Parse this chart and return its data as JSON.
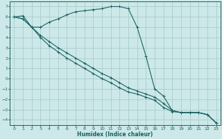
{
  "xlabel": "Humidex (Indice chaleur)",
  "background_color": "#cce8e8",
  "grid_color": "#aacccc",
  "line_color": "#1a6060",
  "xlim": [
    -0.5,
    23.5
  ],
  "ylim": [
    -4.5,
    7.5
  ],
  "xticks": [
    0,
    1,
    2,
    3,
    4,
    5,
    6,
    7,
    8,
    9,
    10,
    11,
    12,
    13,
    14,
    15,
    16,
    17,
    18,
    19,
    20,
    21,
    22,
    23
  ],
  "yticks": [
    -4,
    -3,
    -2,
    -1,
    0,
    1,
    2,
    3,
    4,
    5,
    6,
    7
  ],
  "line1_x": [
    0,
    1,
    2,
    3,
    4,
    5,
    6,
    7,
    8,
    9,
    10,
    11,
    12,
    13,
    14,
    15,
    16,
    17,
    18,
    19,
    20,
    21,
    22,
    23
  ],
  "line1_y": [
    6.0,
    6.1,
    5.0,
    5.0,
    5.5,
    5.8,
    6.2,
    6.5,
    6.6,
    6.7,
    6.8,
    7.0,
    7.0,
    6.8,
    5.0,
    2.2,
    -1.0,
    -1.7,
    -3.1,
    -3.3,
    -3.3,
    -3.3,
    -3.5,
    -4.3
  ],
  "line2_x": [
    0,
    1,
    2,
    3,
    4,
    5,
    6,
    7,
    8,
    9,
    10,
    11,
    12,
    13,
    14,
    15,
    16,
    17,
    18,
    19,
    20,
    21,
    22,
    23
  ],
  "line2_y": [
    6.0,
    5.8,
    5.0,
    4.2,
    3.6,
    3.0,
    2.5,
    2.0,
    1.5,
    1.0,
    0.5,
    0.1,
    -0.4,
    -0.9,
    -1.2,
    -1.5,
    -1.8,
    -2.4,
    -3.1,
    -3.3,
    -3.3,
    -3.3,
    -3.5,
    -4.3
  ],
  "line3_x": [
    0,
    1,
    2,
    3,
    4,
    5,
    6,
    7,
    8,
    9,
    10,
    11,
    12,
    13,
    14,
    15,
    16,
    17,
    18,
    19,
    20,
    21,
    22,
    23
  ],
  "line3_y": [
    6.0,
    5.8,
    5.0,
    4.0,
    3.2,
    2.6,
    2.0,
    1.5,
    1.0,
    0.5,
    0.0,
    -0.4,
    -0.9,
    -1.3,
    -1.5,
    -1.8,
    -2.1,
    -2.8,
    -3.2,
    -3.3,
    -3.3,
    -3.3,
    -3.5,
    -4.3
  ]
}
